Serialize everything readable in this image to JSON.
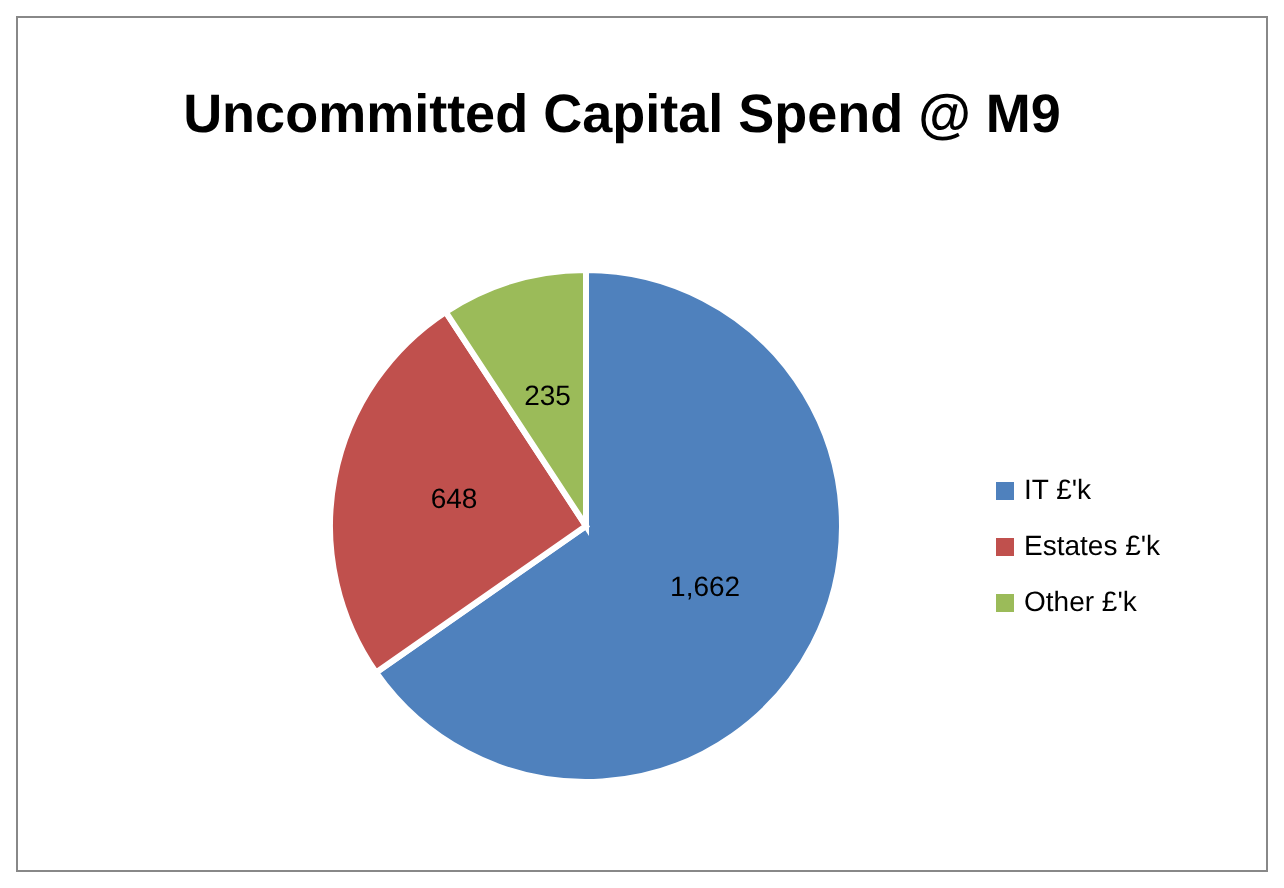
{
  "chart_data": {
    "type": "pie",
    "title": "Uncommitted Capital Spend @ M9",
    "categories": [
      "IT £'k",
      "Estates £'k",
      "Other £'k"
    ],
    "values": [
      1662,
      648,
      235
    ],
    "colors": [
      "#4f81bd",
      "#c0504d",
      "#9bbb59"
    ],
    "value_labels": [
      "1,662",
      "648",
      "235"
    ],
    "legend": "right"
  }
}
